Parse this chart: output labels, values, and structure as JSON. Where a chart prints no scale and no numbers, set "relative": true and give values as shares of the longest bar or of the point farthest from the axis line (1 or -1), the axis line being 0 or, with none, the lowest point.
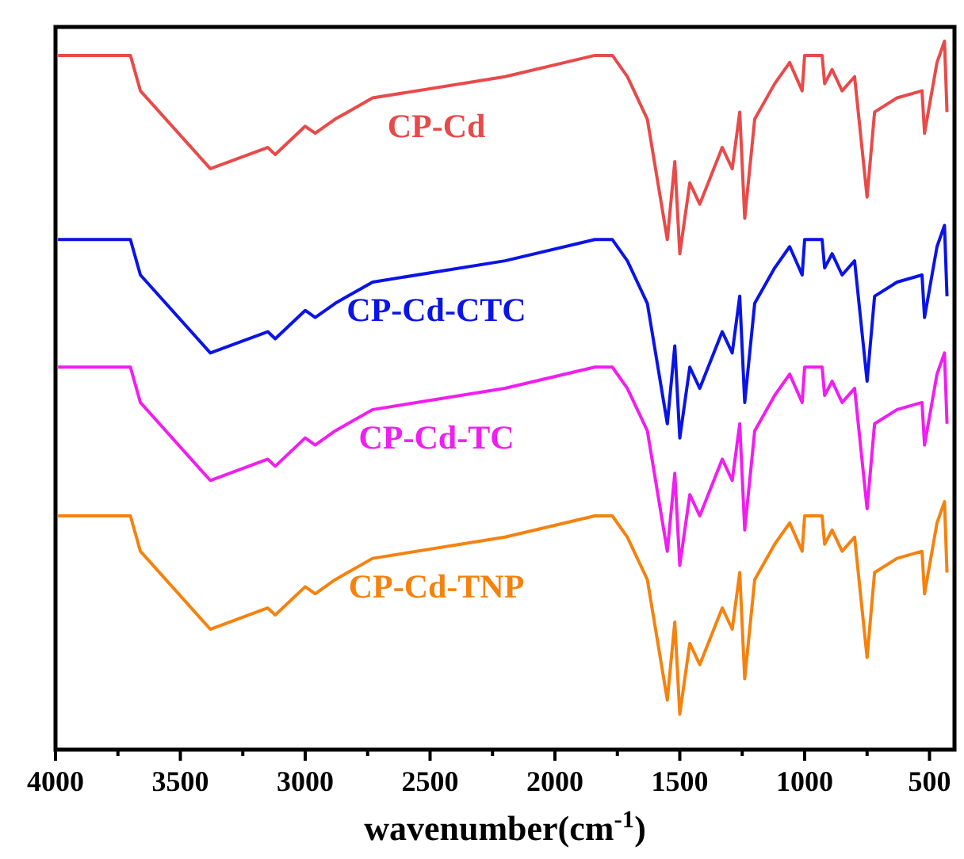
{
  "chart_data": {
    "type": "line",
    "relative": true,
    "xlabel": "wavenumber(cm$^{-1}$)",
    "xlim": [
      4000,
      400
    ],
    "xticks": [
      4000,
      {
        "value": 3750,
        "label": null
      },
      3500,
      {
        "value": 3250,
        "label": null
      },
      3000,
      {
        "value": 2750,
        "label": null
      },
      2500,
      {
        "value": 2250,
        "label": null
      },
      2000,
      {
        "value": 1750,
        "label": null
      },
      1500,
      {
        "value": 1250,
        "label": null
      },
      1000,
      {
        "value": 750,
        "label": null
      },
      500
    ],
    "tick_labels": "x",
    "grid": false,
    "marker": "none",
    "line_style": "solid",
    "x": [
      3990,
      3700,
      3660,
      3380,
      3150,
      3120,
      3000,
      2960,
      2880,
      2830,
      2730,
      2200,
      1840,
      1770,
      1710,
      1630,
      1550,
      1520,
      1500,
      1460,
      1420,
      1330,
      1290,
      1260,
      1240,
      1200,
      1120,
      1060,
      1010,
      1000,
      930,
      920,
      890,
      850,
      800,
      750,
      720,
      630,
      530,
      520,
      470,
      440,
      430
    ],
    "series": [
      {
        "name": "CP-Cd",
        "color": "#e84a4a",
        "values": [
          0.98,
          0.98,
          0.93,
          0.82,
          0.85,
          0.84,
          0.88,
          0.87,
          0.89,
          0.9,
          0.92,
          0.95,
          0.98,
          0.98,
          0.95,
          0.89,
          0.72,
          0.83,
          0.7,
          0.8,
          0.77,
          0.85,
          0.82,
          0.9,
          0.75,
          0.89,
          0.94,
          0.97,
          0.93,
          0.98,
          0.98,
          0.94,
          0.96,
          0.93,
          0.95,
          0.78,
          0.9,
          0.92,
          0.93,
          0.87,
          0.97,
          1.0,
          0.9
        ]
      },
      {
        "name": "CP-Cd-CTC",
        "color": "#0a14e6",
        "values": [
          0.72,
          0.72,
          0.67,
          0.56,
          0.59,
          0.58,
          0.62,
          0.61,
          0.63,
          0.64,
          0.66,
          0.69,
          0.72,
          0.72,
          0.69,
          0.63,
          0.46,
          0.57,
          0.44,
          0.54,
          0.51,
          0.59,
          0.56,
          0.64,
          0.49,
          0.63,
          0.68,
          0.71,
          0.67,
          0.72,
          0.72,
          0.68,
          0.7,
          0.67,
          0.69,
          0.52,
          0.64,
          0.66,
          0.67,
          0.61,
          0.71,
          0.74,
          0.64
        ]
      },
      {
        "name": "CP-Cd-TC",
        "color": "#f01ef0",
        "values": [
          0.54,
          0.54,
          0.49,
          0.38,
          0.41,
          0.4,
          0.44,
          0.43,
          0.45,
          0.46,
          0.48,
          0.51,
          0.54,
          0.54,
          0.51,
          0.45,
          0.28,
          0.39,
          0.26,
          0.36,
          0.33,
          0.41,
          0.38,
          0.46,
          0.31,
          0.45,
          0.5,
          0.53,
          0.49,
          0.54,
          0.54,
          0.5,
          0.52,
          0.49,
          0.51,
          0.34,
          0.46,
          0.48,
          0.49,
          0.43,
          0.53,
          0.56,
          0.46
        ]
      },
      {
        "name": "CP-Cd-TNP",
        "color": "#f5820f",
        "values": [
          0.33,
          0.33,
          0.28,
          0.17,
          0.2,
          0.19,
          0.23,
          0.22,
          0.24,
          0.25,
          0.27,
          0.3,
          0.33,
          0.33,
          0.3,
          0.24,
          0.07,
          0.18,
          0.05,
          0.15,
          0.12,
          0.2,
          0.17,
          0.25,
          0.1,
          0.24,
          0.29,
          0.32,
          0.28,
          0.33,
          0.33,
          0.29,
          0.31,
          0.28,
          0.3,
          0.13,
          0.25,
          0.27,
          0.28,
          0.22,
          0.32,
          0.35,
          0.25
        ]
      }
    ]
  }
}
